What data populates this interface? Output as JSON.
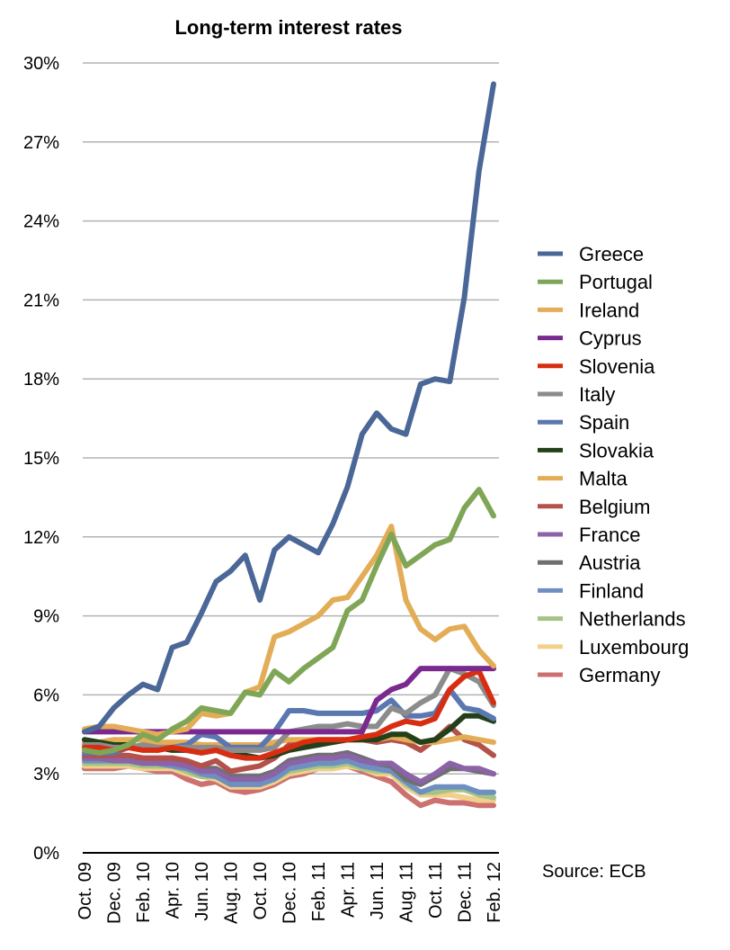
{
  "chart_data": {
    "type": "line",
    "title": "Long-term interest rates",
    "source": "Source: ECB",
    "xlabel": "",
    "ylabel": "",
    "ylim": [
      0,
      30
    ],
    "yticks": [
      "0%",
      "3%",
      "6%",
      "9%",
      "12%",
      "15%",
      "18%",
      "21%",
      "24%",
      "27%",
      "30%"
    ],
    "grid": true,
    "legend_position": "right",
    "categories": [
      "Oct. 09",
      "Nov. 09",
      "Dec. 09",
      "Jan. 10",
      "Feb. 10",
      "Mar. 10",
      "Apr. 10",
      "May 10",
      "Jun. 10",
      "Jul. 10",
      "Aug. 10",
      "Sep. 10",
      "Oct. 10",
      "Nov. 10",
      "Dec. 10",
      "Jan. 11",
      "Feb. 11",
      "Mar. 11",
      "Apr. 11",
      "May 11",
      "Jun. 11",
      "Jul. 11",
      "Aug. 11",
      "Sep. 11",
      "Oct. 11",
      "Nov. 11",
      "Dec. 11",
      "Jan. 12",
      "Feb. 12"
    ],
    "x_tick_labels": [
      "Oct. 09",
      "",
      "Dec. 09",
      "",
      "Feb. 10",
      "",
      "Apr. 10",
      "",
      "Jun. 10",
      "",
      "Aug. 10",
      "",
      "Oct. 10",
      "",
      "Dec. 10",
      "",
      "Feb. 11",
      "",
      "Apr. 11",
      "",
      "Jun. 11",
      "",
      "Aug. 11",
      "",
      "Oct. 11",
      "",
      "Dec. 11",
      "",
      "Feb. 12"
    ],
    "series": [
      {
        "name": "Greece",
        "color": "#4a6797",
        "values": [
          4.6,
          4.8,
          5.5,
          6.0,
          6.4,
          6.2,
          7.8,
          8.0,
          9.1,
          10.3,
          10.7,
          11.3,
          9.6,
          11.5,
          12.0,
          11.7,
          11.4,
          12.5,
          13.9,
          15.9,
          16.7,
          16.1,
          15.9,
          17.8,
          18.0,
          17.9,
          21.1,
          25.9,
          29.2
        ]
      },
      {
        "name": "Portugal",
        "color": "#7fa656",
        "values": [
          3.9,
          3.8,
          3.9,
          4.1,
          4.5,
          4.3,
          4.7,
          5.0,
          5.5,
          5.4,
          5.3,
          6.1,
          6.0,
          6.9,
          6.5,
          7.0,
          7.4,
          7.8,
          9.2,
          9.6,
          10.9,
          12.1,
          10.9,
          11.3,
          11.7,
          11.9,
          13.1,
          13.8,
          12.8
        ]
      },
      {
        "name": "Ireland",
        "color": "#e3ad57",
        "values": [
          4.7,
          4.8,
          4.8,
          4.7,
          4.6,
          4.5,
          4.6,
          4.7,
          5.3,
          5.2,
          5.3,
          6.1,
          6.3,
          8.2,
          8.4,
          8.7,
          9.0,
          9.6,
          9.7,
          10.5,
          11.3,
          12.4,
          9.6,
          8.5,
          8.1,
          8.5,
          8.6,
          7.7,
          7.1
        ]
      },
      {
        "name": "Cyprus",
        "color": "#7a2a8f",
        "values": [
          4.6,
          4.6,
          4.6,
          4.6,
          4.6,
          4.6,
          4.6,
          4.6,
          4.6,
          4.6,
          4.6,
          4.6,
          4.6,
          4.6,
          4.6,
          4.6,
          4.6,
          4.6,
          4.6,
          4.6,
          5.8,
          6.2,
          6.4,
          7.0,
          7.0,
          7.0,
          7.0,
          7.0,
          7.0
        ]
      },
      {
        "name": "Slovenia",
        "color": "#d92d12",
        "values": [
          4.0,
          4.0,
          3.9,
          4.0,
          3.9,
          3.9,
          4.0,
          3.9,
          3.8,
          3.9,
          3.7,
          3.6,
          3.6,
          3.8,
          4.0,
          4.2,
          4.3,
          4.3,
          4.3,
          4.4,
          4.5,
          4.8,
          5.0,
          4.9,
          5.1,
          6.2,
          6.7,
          6.9,
          5.7
        ]
      },
      {
        "name": "Italy",
        "color": "#8c8c8c",
        "values": [
          4.1,
          4.1,
          4.0,
          4.0,
          4.1,
          4.0,
          4.0,
          4.0,
          4.0,
          4.0,
          3.9,
          3.9,
          3.9,
          4.0,
          4.6,
          4.7,
          4.8,
          4.8,
          4.9,
          4.8,
          4.8,
          5.5,
          5.3,
          5.7,
          6.0,
          7.0,
          6.8,
          6.5,
          5.6
        ]
      },
      {
        "name": "Spain",
        "color": "#5a77b0",
        "values": [
          3.8,
          3.8,
          3.8,
          4.0,
          4.0,
          3.9,
          4.0,
          4.1,
          4.5,
          4.4,
          4.0,
          4.0,
          4.0,
          4.6,
          5.4,
          5.4,
          5.3,
          5.3,
          5.3,
          5.3,
          5.4,
          5.8,
          5.2,
          5.2,
          5.3,
          6.2,
          5.5,
          5.4,
          5.1
        ]
      },
      {
        "name": "Slovakia",
        "color": "#23401a",
        "values": [
          4.3,
          4.2,
          4.1,
          4.1,
          4.0,
          4.0,
          3.9,
          3.9,
          3.8,
          3.9,
          3.7,
          3.7,
          3.6,
          3.7,
          3.9,
          4.0,
          4.1,
          4.2,
          4.3,
          4.3,
          4.3,
          4.5,
          4.5,
          4.2,
          4.3,
          4.7,
          5.2,
          5.2,
          5.0
        ]
      },
      {
        "name": "Malta",
        "color": "#e3ad57",
        "values": [
          4.2,
          4.2,
          4.3,
          4.3,
          4.3,
          4.2,
          4.2,
          4.2,
          4.1,
          4.1,
          4.1,
          4.1,
          4.1,
          4.2,
          4.3,
          4.3,
          4.3,
          4.3,
          4.3,
          4.3,
          4.3,
          4.4,
          4.3,
          4.2,
          4.2,
          4.3,
          4.4,
          4.3,
          4.2
        ]
      },
      {
        "name": "Belgium",
        "color": "#b3514a",
        "values": [
          3.7,
          3.7,
          3.7,
          3.7,
          3.6,
          3.6,
          3.6,
          3.5,
          3.3,
          3.5,
          3.1,
          3.2,
          3.3,
          3.6,
          4.1,
          4.2,
          4.2,
          4.2,
          4.3,
          4.3,
          4.2,
          4.3,
          4.2,
          3.9,
          4.3,
          4.8,
          4.3,
          4.1,
          3.7
        ]
      },
      {
        "name": "France",
        "color": "#8a63a8",
        "values": [
          3.6,
          3.6,
          3.5,
          3.5,
          3.4,
          3.4,
          3.4,
          3.3,
          3.1,
          3.1,
          2.8,
          2.8,
          2.8,
          3.0,
          3.4,
          3.5,
          3.6,
          3.6,
          3.7,
          3.5,
          3.4,
          3.4,
          3.0,
          2.7,
          3.0,
          3.4,
          3.2,
          3.2,
          3.0
        ]
      },
      {
        "name": "Austria",
        "color": "#6f6f6f",
        "values": [
          3.6,
          3.6,
          3.6,
          3.6,
          3.5,
          3.5,
          3.5,
          3.4,
          3.2,
          3.2,
          2.9,
          2.9,
          2.9,
          3.1,
          3.5,
          3.6,
          3.7,
          3.7,
          3.8,
          3.6,
          3.4,
          3.3,
          2.8,
          2.6,
          2.9,
          3.2,
          3.2,
          3.1,
          3.0
        ]
      },
      {
        "name": "Finland",
        "color": "#6f8fc0",
        "values": [
          3.5,
          3.5,
          3.5,
          3.5,
          3.4,
          3.4,
          3.3,
          3.2,
          3.0,
          2.9,
          2.6,
          2.6,
          2.6,
          2.8,
          3.2,
          3.3,
          3.4,
          3.4,
          3.5,
          3.3,
          3.2,
          3.1,
          2.7,
          2.3,
          2.5,
          2.5,
          2.5,
          2.3,
          2.3
        ]
      },
      {
        "name": "Netherlands",
        "color": "#a3c486",
        "values": [
          3.4,
          3.4,
          3.4,
          3.4,
          3.3,
          3.3,
          3.3,
          3.1,
          2.9,
          2.9,
          2.6,
          2.6,
          2.6,
          2.8,
          3.1,
          3.2,
          3.3,
          3.3,
          3.4,
          3.2,
          3.1,
          3.1,
          2.6,
          2.3,
          2.3,
          2.4,
          2.4,
          2.2,
          2.1
        ]
      },
      {
        "name": "Luxembourg",
        "color": "#f2d08a",
        "values": [
          3.3,
          3.3,
          3.3,
          3.3,
          3.2,
          3.2,
          3.2,
          3.0,
          2.9,
          2.8,
          2.5,
          2.5,
          2.5,
          2.7,
          3.0,
          3.1,
          3.2,
          3.2,
          3.3,
          3.2,
          3.0,
          3.0,
          2.5,
          2.2,
          2.2,
          2.2,
          2.1,
          2.0,
          2.0
        ]
      },
      {
        "name": "Germany",
        "color": "#cd7070",
        "values": [
          3.2,
          3.2,
          3.2,
          3.3,
          3.2,
          3.1,
          3.1,
          2.8,
          2.6,
          2.7,
          2.4,
          2.3,
          2.4,
          2.6,
          2.9,
          3.0,
          3.2,
          3.2,
          3.3,
          3.1,
          2.9,
          2.7,
          2.2,
          1.8,
          2.0,
          1.9,
          1.9,
          1.8,
          1.8
        ]
      }
    ]
  }
}
